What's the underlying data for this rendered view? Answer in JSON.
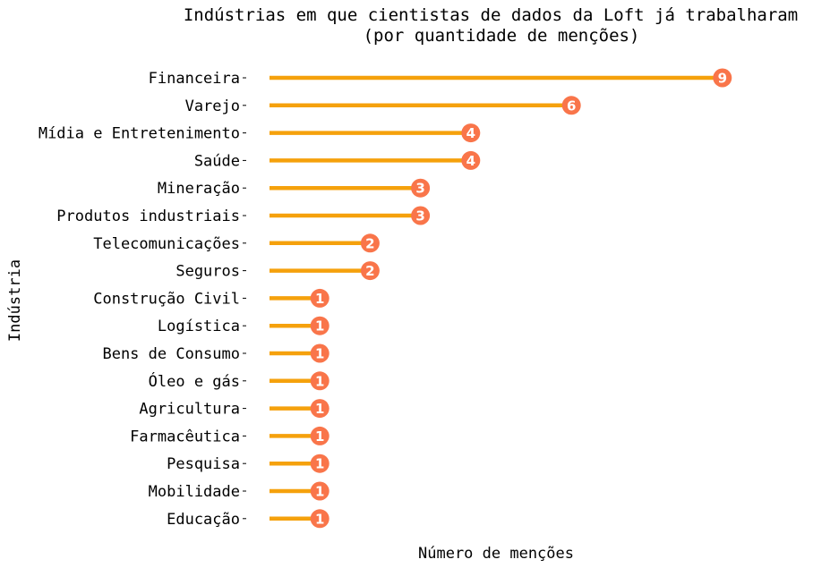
{
  "chart_data": {
    "type": "lollipop",
    "title_line1": "Indústrias em que cientistas de dados da Loft já trabalharam",
    "title_line2": "(por quantidade de menções)",
    "xlabel": "Número de menções",
    "ylabel": "Indústria",
    "categories": [
      "Financeira",
      "Varejo",
      "Mídia e Entretenimento",
      "Saúde",
      "Mineração",
      "Produtos industriais",
      "Telecomunicações",
      "Seguros",
      "Construção Civil",
      "Logística",
      "Bens de Consumo",
      "Óleo e gás",
      "Agricultura",
      "Farmacêutica",
      "Pesquisa",
      "Mobilidade",
      "Educação"
    ],
    "values": [
      9,
      6,
      4,
      4,
      3,
      3,
      2,
      2,
      1,
      1,
      1,
      1,
      1,
      1,
      1,
      1,
      1
    ],
    "xlim": [
      0,
      9
    ],
    "grid": false,
    "colors": {
      "stem": "#f5a10c",
      "marker": "#f9754a",
      "value_text": "#ffffff"
    }
  }
}
